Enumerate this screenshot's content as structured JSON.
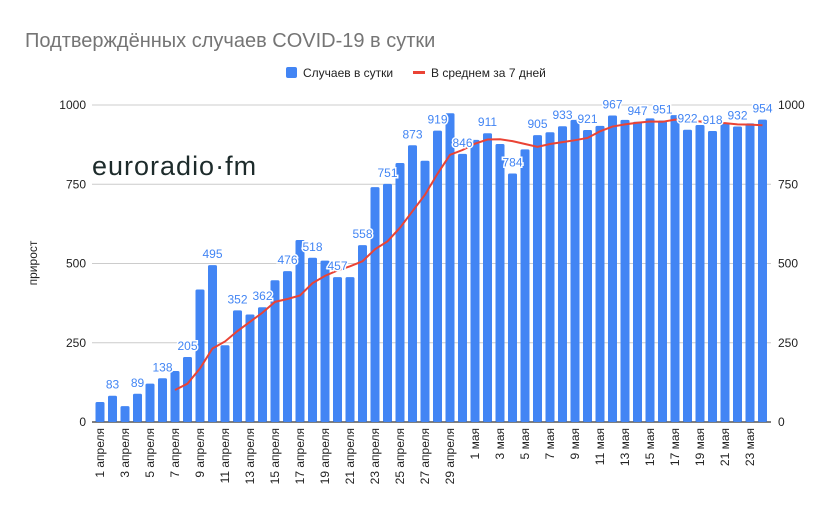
{
  "chart_data": {
    "type": "bar",
    "title": "Подтверждённых случаев COVID-19 в сутки",
    "ylabel": "прирост",
    "xlabel": "",
    "ylim": [
      0,
      1000
    ],
    "yticks": [
      "0",
      "250",
      "500",
      "750",
      "1000"
    ],
    "grid": true,
    "legend_position": "top",
    "watermark": "euroradio·fm",
    "categories": [
      "1 апреля",
      "2 апреля",
      "3 апреля",
      "4 апреля",
      "5 апреля",
      "6 апреля",
      "7 апреля",
      "8 апреля",
      "9 апреля",
      "10 апреля",
      "11 апреля",
      "12 апреля",
      "13 апреля",
      "14 апреля",
      "15 апреля",
      "16 апреля",
      "17 апреля",
      "18 апреля",
      "19 апреля",
      "20 апреля",
      "21 апреля",
      "22 апреля",
      "23 апреля",
      "24 апреля",
      "25 апреля",
      "26 апреля",
      "27 апреля",
      "28 апреля",
      "29 апреля",
      "30 апреля",
      "1 мая",
      "2 мая",
      "3 мая",
      "4 мая",
      "5 мая",
      "6 мая",
      "7 мая",
      "8 мая",
      "9 мая",
      "10 мая",
      "11 мая",
      "12 мая",
      "13 мая",
      "14 мая",
      "15 мая",
      "16 мая",
      "17 мая",
      "18 мая",
      "19 мая",
      "20 мая",
      "21 мая",
      "22 мая",
      "23 мая",
      "24 мая"
    ],
    "series": [
      {
        "name": "Случаев в сутки",
        "type": "bar",
        "color": "#4285f4",
        "values": [
          63,
          83,
          50,
          89,
          121,
          138,
          161,
          205,
          418,
          495,
          242,
          352,
          339,
          362,
          447,
          476,
          574,
          518,
          509,
          457,
          457,
          558,
          741,
          751,
          817,
          873,
          824,
          919,
          974,
          846,
          890,
          911,
          877,
          784,
          860,
          905,
          914,
          933,
          953,
          921,
          934,
          967,
          953,
          947,
          958,
          951,
          968,
          922,
          937,
          918,
          944,
          932,
          942,
          954
        ]
      },
      {
        "name": "В среднем за 7 дней",
        "type": "line",
        "color": "#ea4335",
        "values": [
          null,
          null,
          null,
          null,
          null,
          null,
          101,
          121,
          169,
          232,
          254,
          287,
          316,
          345,
          379,
          388,
          399,
          438,
          461,
          478,
          491,
          507,
          545,
          570,
          613,
          665,
          717,
          783,
          843,
          858,
          878,
          891,
          892,
          886,
          877,
          868,
          877,
          883,
          889,
          896,
          917,
          932,
          939,
          944,
          948,
          947,
          954,
          952,
          948,
          943,
          943,
          939,
          938,
          936
        ]
      }
    ]
  }
}
